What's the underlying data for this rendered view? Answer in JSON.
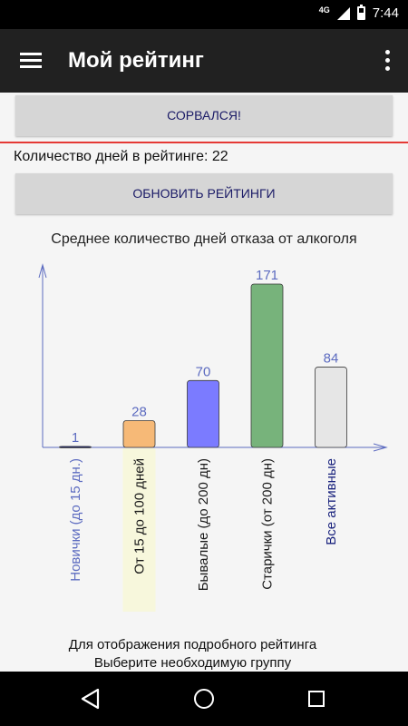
{
  "status_bar": {
    "network": "4G",
    "time": "7:44"
  },
  "app_bar": {
    "title": "Мой рейтинг"
  },
  "buttons": {
    "failed": "СОРВАЛСЯ!",
    "refresh": "ОБНОВИТЬ РЕЙТИНГИ"
  },
  "days_in_rating": "Количество дней в рейтинге: 22",
  "hint": {
    "line1": "Для отображения подробного рейтинга",
    "line2": "Выберите необходимую группу"
  },
  "chart_data": {
    "type": "bar",
    "title": "Среднее количество дней отказа от алкоголя",
    "categories": [
      "Новички (до 15 дн.)",
      "От 15 до 100 дней",
      "Бывалые (до 200 дн)",
      "Старички (от 200 дн)",
      "Все активные"
    ],
    "values": [
      1,
      28,
      70,
      171,
      84
    ],
    "colors": [
      "#1a237e",
      "#f6b977",
      "#7b7bff",
      "#77b37b",
      "#e6e6e6"
    ],
    "label_colors": [
      "#5c6bc0",
      "#1a1a1a",
      "#1a1a1a",
      "#1a1a1a",
      "#1a237e"
    ],
    "highlighted_category": 1,
    "highlight_color": "#f7f7dc",
    "ylim": [
      0,
      171
    ]
  }
}
